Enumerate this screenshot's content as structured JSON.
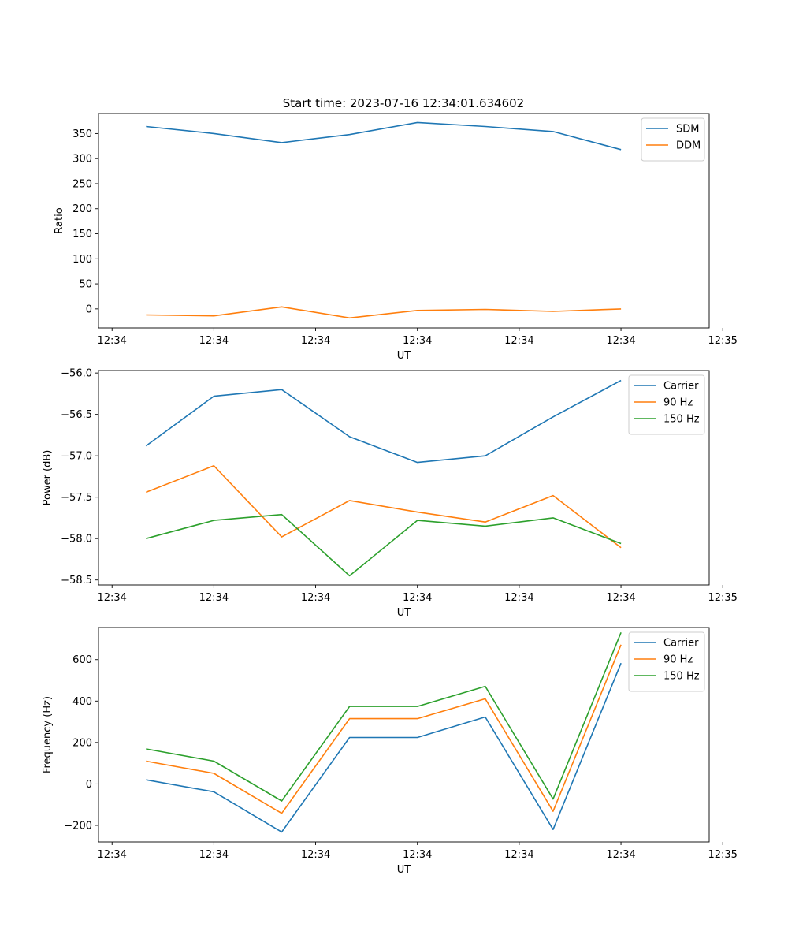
{
  "title": "Start time: 2023-07-16 12:34:01.634602",
  "colors": {
    "blue": "#1f77b4",
    "orange": "#ff7f0e",
    "green": "#2ca02c"
  },
  "chart_data": [
    {
      "type": "line",
      "title": "Start time: 2023-07-16 12:34:01.634602",
      "xlabel": "UT",
      "ylabel": "Ratio",
      "x_ticks": [
        "12:34",
        "12:34",
        "12:34",
        "12:34",
        "12:34",
        "12:34",
        "12:35"
      ],
      "x": [
        1,
        2,
        3,
        4,
        5,
        6,
        7,
        8
      ],
      "xlim": [
        0.3,
        9.3
      ],
      "ylim": [
        -38,
        390
      ],
      "y_ticks": [
        350,
        300,
        250,
        200,
        150,
        100,
        50,
        0
      ],
      "legend_position": "upper-right",
      "series": [
        {
          "name": "SDM",
          "color": "#1f77b4",
          "values": [
            364,
            350,
            332,
            348,
            372,
            364,
            354,
            318
          ]
        },
        {
          "name": "DDM",
          "color": "#ff7f0e",
          "values": [
            -12,
            -14,
            4,
            -18,
            -3,
            -1,
            -5,
            0
          ]
        }
      ]
    },
    {
      "type": "line",
      "title": "",
      "xlabel": "UT",
      "ylabel": "Power (dB)",
      "x_ticks": [
        "12:34",
        "12:34",
        "12:34",
        "12:34",
        "12:34",
        "12:34",
        "12:35"
      ],
      "x": [
        1,
        2,
        3,
        4,
        5,
        6,
        7,
        8
      ],
      "xlim": [
        0.3,
        9.3
      ],
      "ylim": [
        -58.56,
        -55.97
      ],
      "y_ticks": [
        -56.0,
        -56.5,
        -57.0,
        -57.5,
        -58.0,
        -58.5
      ],
      "y_tick_labels": [
        "−56.0",
        "−56.5",
        "−57.0",
        "−57.5",
        "−58.0",
        "−58.5"
      ],
      "legend_position": "upper-right",
      "series": [
        {
          "name": "Carrier",
          "color": "#1f77b4",
          "values": [
            -56.88,
            -56.28,
            -56.2,
            -56.77,
            -57.08,
            -57.0,
            -56.53,
            -56.09
          ]
        },
        {
          "name": "90 Hz",
          "color": "#ff7f0e",
          "values": [
            -57.44,
            -57.12,
            -57.98,
            -57.54,
            -57.68,
            -57.8,
            -57.48,
            -58.11
          ]
        },
        {
          "name": "150 Hz",
          "color": "#2ca02c",
          "values": [
            -58.0,
            -57.78,
            -57.71,
            -58.45,
            -57.78,
            -57.85,
            -57.75,
            -58.06
          ]
        }
      ]
    },
    {
      "type": "line",
      "title": "",
      "xlabel": "UT",
      "ylabel": "Frequency (Hz)",
      "x_ticks": [
        "12:34",
        "12:34",
        "12:34",
        "12:34",
        "12:34",
        "12:34",
        "12:35"
      ],
      "x": [
        1,
        2,
        3,
        4,
        5,
        6,
        7,
        8
      ],
      "xlim": [
        0.3,
        9.3
      ],
      "ylim": [
        -280,
        755
      ],
      "y_ticks": [
        600,
        400,
        200,
        0,
        -200
      ],
      "y_tick_labels": [
        "600",
        "400",
        "200",
        "0",
        "−200"
      ],
      "legend_position": "upper-right",
      "series": [
        {
          "name": "Carrier",
          "color": "#1f77b4",
          "values": [
            20,
            -38,
            -232,
            224,
            224,
            323,
            -220,
            583
          ]
        },
        {
          "name": "90 Hz",
          "color": "#ff7f0e",
          "values": [
            110,
            51,
            -142,
            315,
            315,
            411,
            -132,
            672
          ]
        },
        {
          "name": "150 Hz",
          "color": "#2ca02c",
          "values": [
            169,
            110,
            -82,
            374,
            374,
            471,
            -73,
            731
          ]
        }
      ]
    }
  ]
}
